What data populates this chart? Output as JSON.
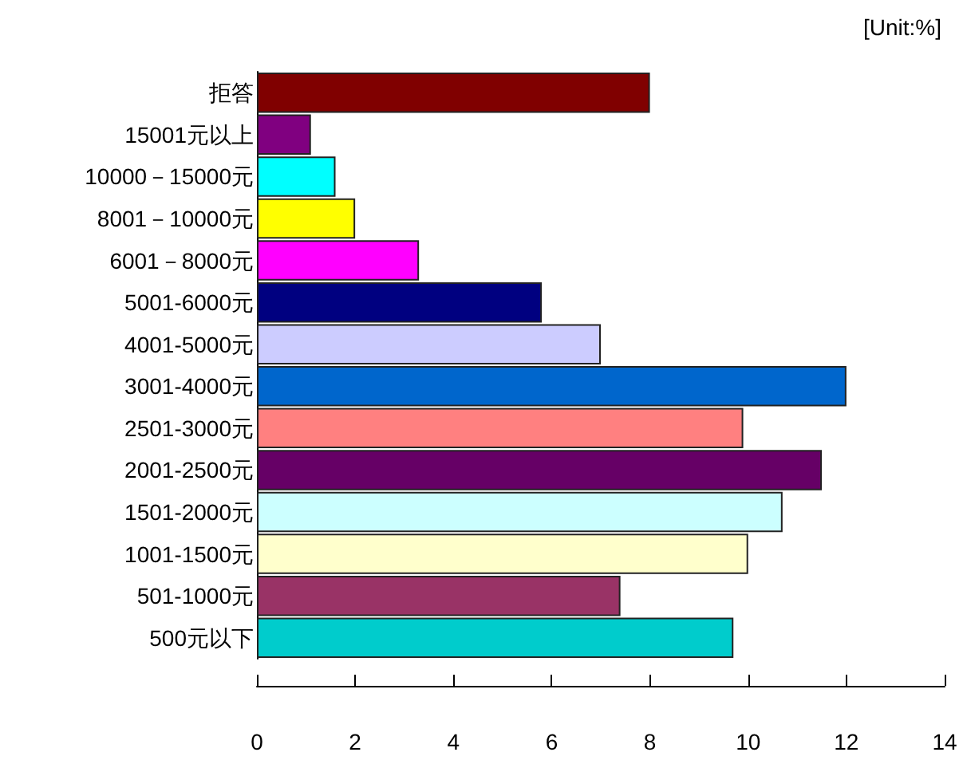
{
  "chart_data": {
    "type": "bar",
    "orientation": "horizontal",
    "categories": [
      "拒答",
      "15001元以上",
      "10000－15000元",
      "8001－10000元",
      "6001－8000元",
      "5001-6000元",
      "4001-5000元",
      "3001-4000元",
      "2501-3000元",
      "2001-2500元",
      "1501-2000元",
      "1001-1500元",
      "501-1000元",
      "500元以下"
    ],
    "values": [
      8.0,
      1.1,
      1.6,
      2.0,
      3.3,
      5.8,
      7.0,
      12.0,
      9.9,
      11.5,
      10.7,
      10.0,
      7.4,
      9.7
    ],
    "colors": [
      "#800000",
      "#800080",
      "#00ffff",
      "#ffff00",
      "#ff00ff",
      "#000080",
      "#ccccff",
      "#0066cc",
      "#ff8080",
      "#660066",
      "#ccffff",
      "#ffffcc",
      "#993366",
      "#00cccc"
    ],
    "xlim": [
      0,
      14
    ],
    "xticks": [
      0,
      2,
      4,
      6,
      8,
      10,
      12,
      14
    ],
    "annotations": [
      "[Unit:%]"
    ]
  }
}
